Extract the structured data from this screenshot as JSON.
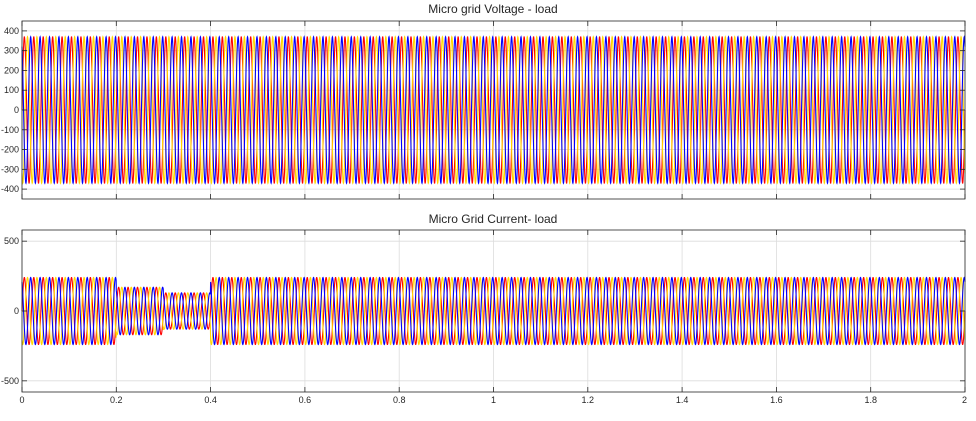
{
  "chart_data": [
    {
      "type": "line",
      "title": "Micro grid Voltage - load",
      "xlabel": "",
      "ylabel": "",
      "xlim": [
        0,
        2
      ],
      "ylim": [
        -450,
        450
      ],
      "grid": true,
      "y_ticks": [
        400,
        300,
        200,
        100,
        0,
        -100,
        -200,
        -300,
        -400
      ],
      "y_tick_labels": [
        "400",
        "300",
        "200",
        "100",
        "0",
        "-100",
        "-200",
        "-300",
        "-400"
      ],
      "x_ticks": [
        0,
        0.2,
        0.4,
        0.6,
        0.8,
        1.0,
        1.2,
        1.4,
        1.6,
        1.8,
        2.0
      ],
      "x_tick_labels": [
        "",
        "",
        "",
        "",
        "",
        "",
        "",
        "",
        "",
        "",
        ""
      ],
      "series": [
        {
          "color": "#ff0000",
          "frequency_hz": 50,
          "phase_deg": 0,
          "segments": [
            {
              "t_start": 0,
              "t_end": 2,
              "amplitude": 370
            }
          ]
        },
        {
          "color": "#ffd700",
          "frequency_hz": 50,
          "phase_deg": -120,
          "segments": [
            {
              "t_start": 0,
              "t_end": 2,
              "amplitude": 370
            }
          ]
        },
        {
          "color": "#0000ff",
          "frequency_hz": 50,
          "phase_deg": 120,
          "segments": [
            {
              "t_start": 0,
              "t_end": 2,
              "amplitude": 370
            }
          ]
        }
      ]
    },
    {
      "type": "line",
      "title": "Micro Grid Current- load",
      "xlabel": "",
      "ylabel": "",
      "xlim": [
        0,
        2
      ],
      "ylim": [
        -580,
        580
      ],
      "grid": true,
      "y_ticks": [
        500,
        0,
        -500
      ],
      "y_tick_labels": [
        "500",
        "0",
        "-500"
      ],
      "x_ticks": [
        0,
        0.2,
        0.4,
        0.6,
        0.8,
        1.0,
        1.2,
        1.4,
        1.6,
        1.8,
        2.0
      ],
      "x_tick_labels": [
        "0",
        "0.2",
        "0.4",
        "0.6",
        "0.8",
        "1",
        "1.2",
        "1.4",
        "1.6",
        "1.8",
        "2"
      ],
      "series": [
        {
          "color": "#ff0000",
          "frequency_hz": 50,
          "phase_deg": 0,
          "segments": [
            {
              "t_start": 0,
              "t_end": 0.2,
              "amplitude": 240
            },
            {
              "t_start": 0.2,
              "t_end": 0.3,
              "amplitude": 170
            },
            {
              "t_start": 0.3,
              "t_end": 0.4,
              "amplitude": 130
            },
            {
              "t_start": 0.4,
              "t_end": 2,
              "amplitude": 240
            }
          ]
        },
        {
          "color": "#ffd700",
          "frequency_hz": 50,
          "phase_deg": -120,
          "segments": [
            {
              "t_start": 0,
              "t_end": 0.2,
              "amplitude": 240
            },
            {
              "t_start": 0.2,
              "t_end": 0.3,
              "amplitude": 170
            },
            {
              "t_start": 0.3,
              "t_end": 0.4,
              "amplitude": 130
            },
            {
              "t_start": 0.4,
              "t_end": 2,
              "amplitude": 240
            }
          ]
        },
        {
          "color": "#0000ff",
          "frequency_hz": 50,
          "phase_deg": 120,
          "segments": [
            {
              "t_start": 0,
              "t_end": 0.2,
              "amplitude": 240
            },
            {
              "t_start": 0.2,
              "t_end": 0.3,
              "amplitude": 170
            },
            {
              "t_start": 0.3,
              "t_end": 0.4,
              "amplitude": 130
            },
            {
              "t_start": 0.4,
              "t_end": 2,
              "amplitude": 240
            }
          ]
        }
      ]
    }
  ]
}
